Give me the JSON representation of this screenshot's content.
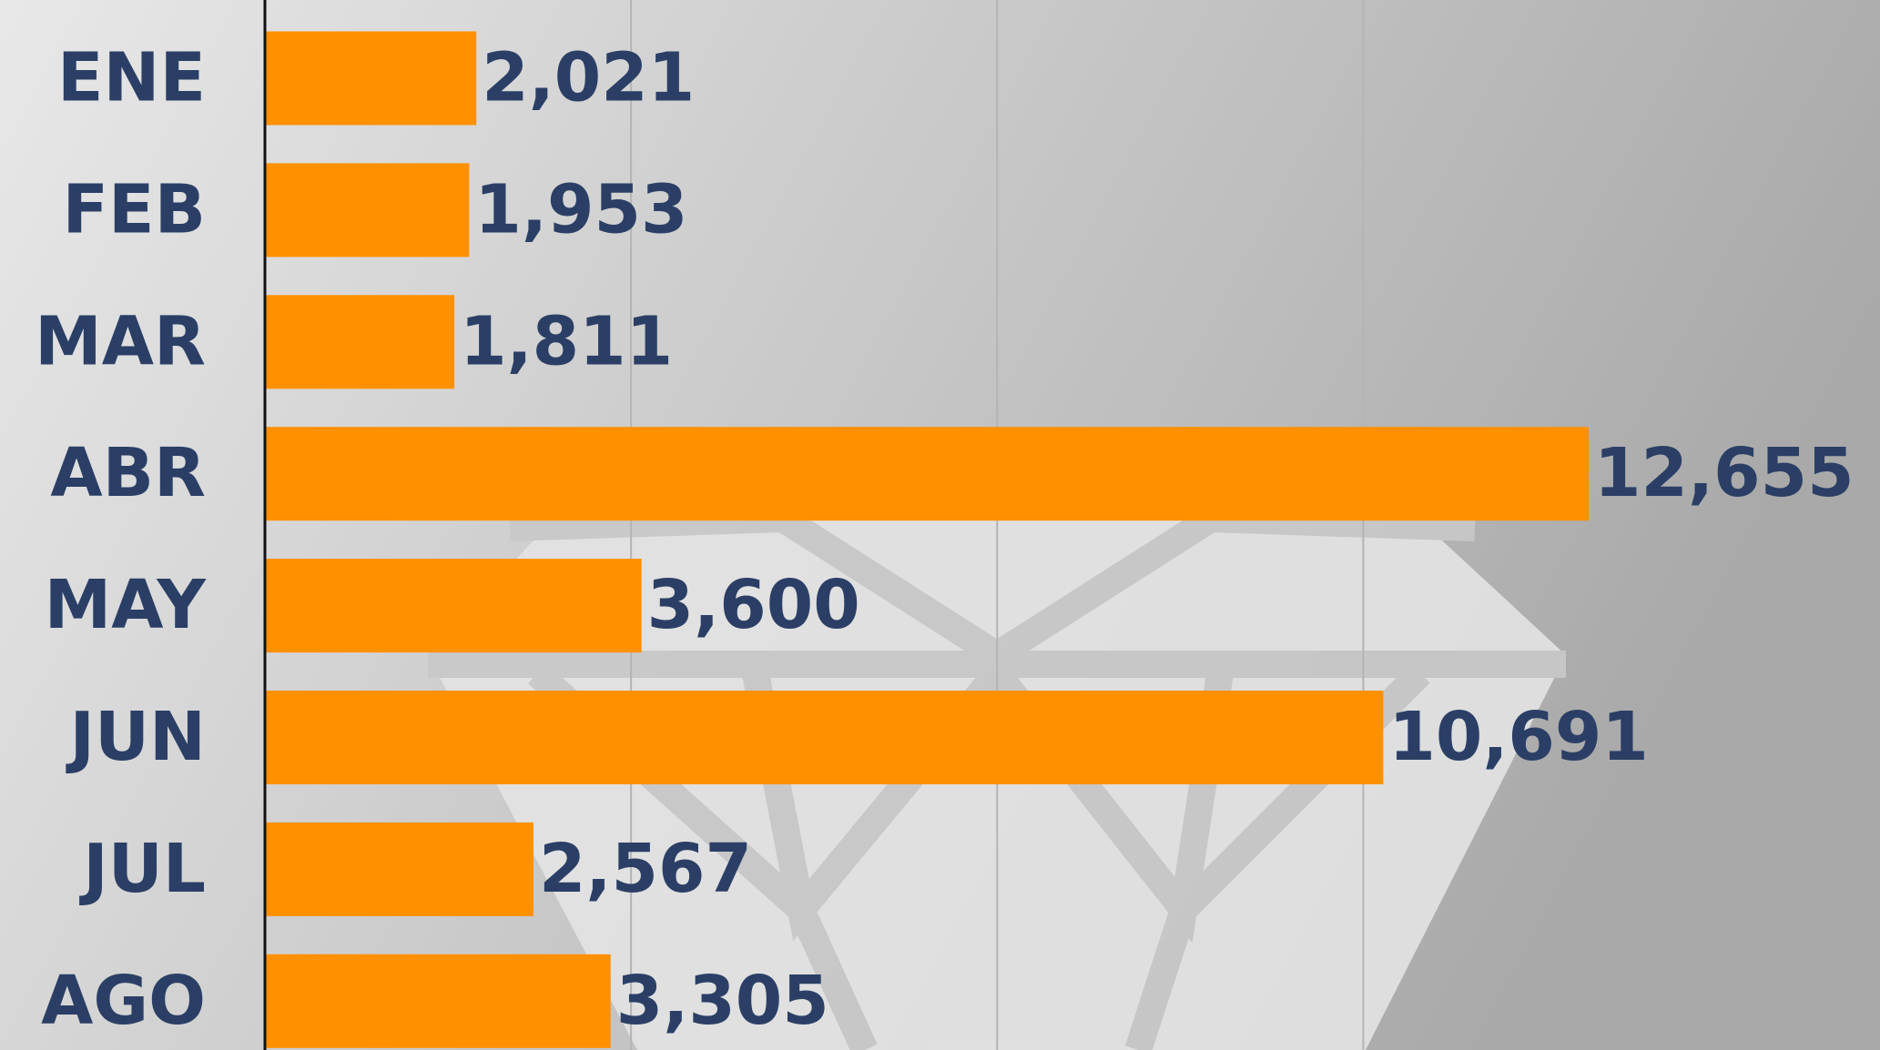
{
  "chart_data": {
    "type": "hbar",
    "categories": [
      "ENE",
      "FEB",
      "MAR",
      "ABR",
      "MAY",
      "JUN",
      "JUL",
      "AGO"
    ],
    "values": [
      2021,
      1953,
      1811,
      12655,
      3600,
      10691,
      2567,
      3305
    ],
    "value_labels": [
      "2,021",
      "1,953",
      "1,811",
      "12,655",
      "3,600",
      "10,691",
      "2,567",
      "3,305"
    ],
    "color": "#ff9000",
    "xlim": [
      0,
      15440
    ],
    "xticks": [
      3500,
      7000,
      10500
    ],
    "grid": true
  }
}
